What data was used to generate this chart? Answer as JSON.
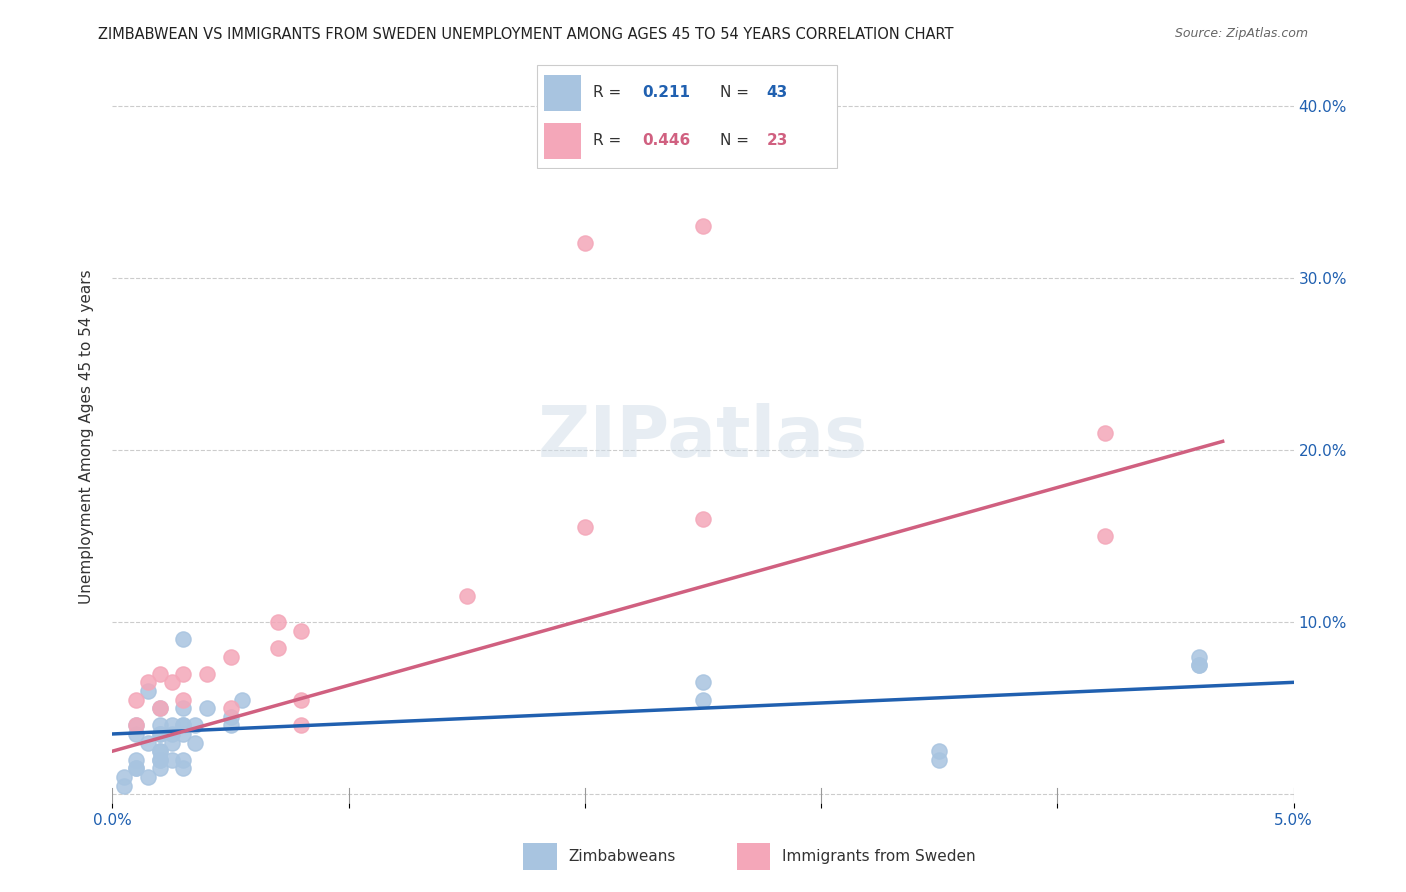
{
  "title": "ZIMBABWEAN VS IMMIGRANTS FROM SWEDEN UNEMPLOYMENT AMONG AGES 45 TO 54 YEARS CORRELATION CHART",
  "source": "Source: ZipAtlas.com",
  "xlabel_bottom": "",
  "ylabel": "Unemployment Among Ages 45 to 54 years",
  "xlim": [
    0.0,
    0.05
  ],
  "ylim": [
    -0.005,
    0.42
  ],
  "xticks": [
    0.0,
    0.01,
    0.02,
    0.03,
    0.04,
    0.05
  ],
  "xticklabels": [
    "0.0%",
    "",
    "",
    "",
    "",
    "5.0%"
  ],
  "yticks": [
    0.0,
    0.1,
    0.2,
    0.3,
    0.4
  ],
  "yticklabels": [
    "",
    "10.0%",
    "20.0%",
    "30.0%",
    "40.0%"
  ],
  "blue_R": "0.211",
  "blue_N": "43",
  "pink_R": "0.446",
  "pink_N": "23",
  "legend_labels": [
    "Zimbabweans",
    "Immigrants from Sweden"
  ],
  "blue_color": "#a8c4e0",
  "pink_color": "#f4a7b9",
  "blue_line_color": "#2060b0",
  "pink_line_color": "#d06080",
  "watermark": "ZIPatlas",
  "blue_scatter_x": [
    0.001,
    0.001,
    0.002,
    0.002,
    0.002,
    0.0015,
    0.003,
    0.003,
    0.0025,
    0.0025,
    0.002,
    0.002,
    0.001,
    0.0005,
    0.001,
    0.0015,
    0.002,
    0.002,
    0.003,
    0.003,
    0.0025,
    0.003,
    0.0035,
    0.0035,
    0.004,
    0.005,
    0.005,
    0.0055,
    0.003,
    0.003,
    0.0025,
    0.002,
    0.002,
    0.0015,
    0.0005,
    0.001,
    0.025,
    0.025,
    0.035,
    0.035,
    0.046,
    0.046,
    0.046
  ],
  "blue_scatter_y": [
    0.04,
    0.035,
    0.05,
    0.04,
    0.035,
    0.06,
    0.09,
    0.04,
    0.035,
    0.03,
    0.025,
    0.02,
    0.015,
    0.01,
    0.015,
    0.03,
    0.025,
    0.035,
    0.04,
    0.05,
    0.04,
    0.035,
    0.04,
    0.03,
    0.05,
    0.045,
    0.04,
    0.055,
    0.02,
    0.015,
    0.02,
    0.02,
    0.015,
    0.01,
    0.005,
    0.02,
    0.065,
    0.055,
    0.02,
    0.025,
    0.075,
    0.08,
    0.075
  ],
  "pink_scatter_x": [
    0.001,
    0.001,
    0.0015,
    0.002,
    0.002,
    0.0025,
    0.003,
    0.003,
    0.004,
    0.005,
    0.005,
    0.007,
    0.007,
    0.008,
    0.008,
    0.008,
    0.015,
    0.02,
    0.02,
    0.025,
    0.025,
    0.042,
    0.042
  ],
  "pink_scatter_y": [
    0.04,
    0.055,
    0.065,
    0.05,
    0.07,
    0.065,
    0.07,
    0.055,
    0.07,
    0.08,
    0.05,
    0.085,
    0.1,
    0.095,
    0.055,
    0.04,
    0.115,
    0.155,
    0.32,
    0.33,
    0.16,
    0.15,
    0.21
  ],
  "blue_trendline": [
    [
      0.0,
      0.035
    ],
    [
      0.05,
      0.065
    ]
  ],
  "pink_trendline": [
    [
      0.0,
      0.025
    ],
    [
      0.047,
      0.205
    ]
  ]
}
